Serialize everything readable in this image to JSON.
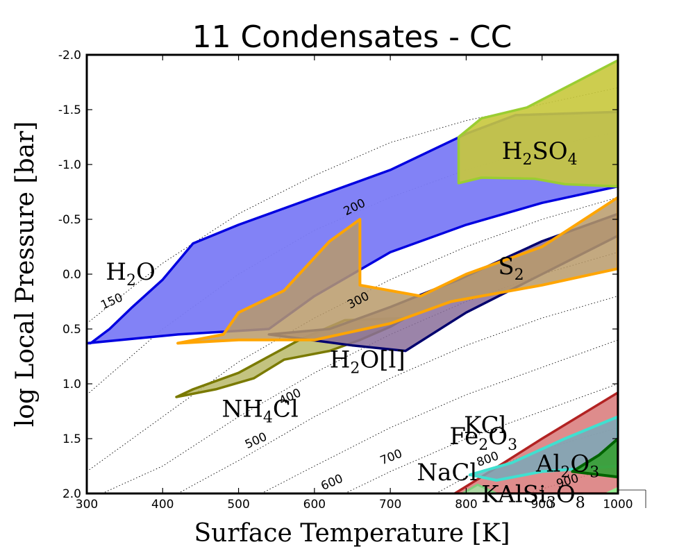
{
  "colors": {
    "h2o": "#0000e0",
    "h2o_fill": "#7b7bf5",
    "orange": "#ffa500",
    "olive": "#7a7a00",
    "olive_fill": "#b8b86a",
    "yellowgreen": "#9acd32",
    "yellow_fill": "#c8c83c",
    "navy": "#00006e",
    "darkred": "#b22222",
    "red_fill": "#d87878",
    "turquoise": "#40e0d0",
    "darkgreen": "#006400",
    "green_fill": "#3aa03a",
    "lightgreen": "#90ee90"
  },
  "chart_data": {
    "type": "area",
    "title": "11 Condensates - CC",
    "xlabel": "Surface Temperature [K]",
    "ylabel": "log Local Pressure [bar]",
    "xlim": [
      300,
      1000
    ],
    "ylim": [
      2.0,
      -2.0
    ],
    "xticks": [
      "300",
      "400",
      "500",
      "600",
      "700",
      "800",
      "900",
      "1000"
    ],
    "yticks": [
      "2.0",
      "1.5",
      "1.0",
      "0.5",
      "0.0",
      "-0.5",
      "-1.0",
      "-1.5",
      "-2.0"
    ],
    "xtick_values": [
      300,
      400,
      500,
      600,
      700,
      800,
      900,
      1000
    ],
    "ytick_values": [
      2.0,
      1.5,
      1.0,
      0.5,
      0.0,
      -0.5,
      -1.0,
      -1.5,
      -2.0
    ],
    "isotherms": [
      {
        "label": "150",
        "points": [
          [
            300,
            0.45
          ],
          [
            400,
            -0.1
          ],
          [
            500,
            -0.55
          ],
          [
            600,
            -0.9
          ],
          [
            700,
            -1.2
          ],
          [
            800,
            -1.4
          ],
          [
            900,
            -1.55
          ],
          [
            1000,
            -1.7
          ]
        ],
        "label_at": [
          335,
          0.28
        ]
      },
      {
        "label": "200",
        "points": [
          [
            300,
            1.1
          ],
          [
            400,
            0.5
          ],
          [
            500,
            0.0
          ],
          [
            600,
            -0.4
          ],
          [
            700,
            -0.7
          ],
          [
            800,
            -0.95
          ],
          [
            900,
            -1.15
          ],
          [
            1000,
            -1.3
          ]
        ],
        "label_at": [
          655,
          -0.58
        ]
      },
      {
        "label": "300",
        "points": [
          [
            300,
            1.8
          ],
          [
            400,
            1.3
          ],
          [
            500,
            0.8
          ],
          [
            600,
            0.4
          ],
          [
            700,
            0.05
          ],
          [
            800,
            -0.25
          ],
          [
            900,
            -0.5
          ],
          [
            1000,
            -0.7
          ]
        ],
        "label_at": [
          660,
          0.27
        ]
      },
      {
        "label": "400",
        "points": [
          [
            320,
            2.0
          ],
          [
            400,
            1.75
          ],
          [
            500,
            1.3
          ],
          [
            600,
            0.9
          ],
          [
            700,
            0.55
          ],
          [
            800,
            0.25
          ],
          [
            900,
            0.0
          ],
          [
            1000,
            -0.2
          ]
        ],
        "label_at": [
          570,
          1.15
        ]
      },
      {
        "label": "500",
        "points": [
          [
            420,
            2.0
          ],
          [
            500,
            1.7
          ],
          [
            600,
            1.3
          ],
          [
            700,
            0.95
          ],
          [
            800,
            0.65
          ],
          [
            900,
            0.4
          ],
          [
            1000,
            0.2
          ]
        ],
        "label_at": [
          525,
          1.55
        ]
      },
      {
        "label": "600",
        "points": [
          [
            530,
            2.0
          ],
          [
            600,
            1.75
          ],
          [
            700,
            1.4
          ],
          [
            800,
            1.1
          ],
          [
            900,
            0.85
          ],
          [
            1000,
            0.6
          ]
        ],
        "label_at": [
          625,
          1.93
        ]
      },
      {
        "label": "700",
        "points": [
          [
            640,
            2.0
          ],
          [
            700,
            1.8
          ],
          [
            800,
            1.5
          ],
          [
            900,
            1.25
          ],
          [
            1000,
            1.0
          ]
        ],
        "label_at": [
          703,
          1.7
        ]
      },
      {
        "label": "800",
        "points": [
          [
            760,
            2.0
          ],
          [
            800,
            1.85
          ],
          [
            900,
            1.6
          ],
          [
            1000,
            1.4
          ]
        ],
        "label_at": [
          830,
          1.72
        ]
      },
      {
        "label": "900",
        "points": [
          [
            880,
            2.0
          ],
          [
            1000,
            1.75
          ]
        ],
        "label_at": [
          935,
          1.92
        ]
      }
    ],
    "regions": [
      {
        "name": "H2O",
        "label": "H2O",
        "label_parts": [
          "H",
          "2",
          "O"
        ],
        "stroke": "#0000e0",
        "fill": "#7b7bf5",
        "opacity": 0.95,
        "width": 3.5,
        "points": [
          [
            305,
            0.63
          ],
          [
            330,
            0.5
          ],
          [
            360,
            0.3
          ],
          [
            400,
            0.05
          ],
          [
            440,
            -0.28
          ],
          [
            500,
            -0.45
          ],
          [
            600,
            -0.7
          ],
          [
            700,
            -0.95
          ],
          [
            800,
            -1.28
          ],
          [
            865,
            -1.45
          ],
          [
            1000,
            -1.48
          ],
          [
            1000,
            -0.8
          ],
          [
            900,
            -0.65
          ],
          [
            800,
            -0.45
          ],
          [
            700,
            -0.2
          ],
          [
            600,
            0.2
          ],
          [
            540,
            0.5
          ],
          [
            420,
            0.55
          ],
          [
            300,
            0.63
          ]
        ],
        "label_at": [
          325,
          0.05
        ]
      },
      {
        "name": "NH4Cl",
        "label": "NH4Cl",
        "label_parts": [
          "NH",
          "4",
          "Cl"
        ],
        "stroke": "#7a7a00",
        "fill": "#b8b86a",
        "opacity": 0.85,
        "width": 3.5,
        "points": [
          [
            418,
            1.12
          ],
          [
            470,
            1.05
          ],
          [
            520,
            0.95
          ],
          [
            560,
            0.78
          ],
          [
            620,
            0.7
          ],
          [
            660,
            0.6
          ],
          [
            700,
            0.48
          ],
          [
            720,
            0.4
          ],
          [
            640,
            0.42
          ],
          [
            580,
            0.6
          ],
          [
            500,
            0.9
          ],
          [
            440,
            1.05
          ],
          [
            418,
            1.12
          ]
        ],
        "label_at": [
          478,
          1.3
        ]
      },
      {
        "name": "H2O[l]",
        "label": "H2O[l]",
        "label_parts": [
          "H",
          "2",
          "O[l]"
        ],
        "stroke": "#00006e",
        "fill": "#8a6e9a",
        "opacity": 0.85,
        "width": 3.5,
        "points": [
          [
            540,
            0.55
          ],
          [
            620,
            0.5
          ],
          [
            700,
            0.3
          ],
          [
            790,
            0.05
          ],
          [
            900,
            -0.3
          ],
          [
            1000,
            -0.55
          ],
          [
            1000,
            -0.35
          ],
          [
            900,
            0.0
          ],
          [
            800,
            0.35
          ],
          [
            720,
            0.7
          ],
          [
            650,
            0.65
          ],
          [
            540,
            0.55
          ]
        ],
        "label_at": [
          620,
          0.85
        ]
      },
      {
        "name": "S2",
        "label": "S2",
        "label_parts": [
          "S",
          "2",
          ""
        ],
        "stroke": "#ffa500",
        "fill": "#b89a6a",
        "opacity": 0.85,
        "width": 4.0,
        "points": [
          [
            420,
            0.63
          ],
          [
            480,
            0.55
          ],
          [
            500,
            0.35
          ],
          [
            560,
            0.15
          ],
          [
            620,
            -0.3
          ],
          [
            660,
            -0.5
          ],
          [
            660,
            0.1
          ],
          [
            740,
            0.2
          ],
          [
            800,
            0.0
          ],
          [
            900,
            -0.25
          ],
          [
            1000,
            -0.7
          ],
          [
            1000,
            -0.05
          ],
          [
            900,
            0.1
          ],
          [
            780,
            0.25
          ],
          [
            700,
            0.45
          ],
          [
            600,
            0.6
          ],
          [
            500,
            0.6
          ],
          [
            420,
            0.63
          ]
        ],
        "label_at": [
          842,
          0.0
        ]
      },
      {
        "name": "H2SO4",
        "label": "H2SO4",
        "label_parts": [
          "H",
          "2",
          "SO",
          "4",
          ""
        ],
        "stroke": "#9acd32",
        "fill": "#c8c83c",
        "opacity": 0.9,
        "width": 3.5,
        "points": [
          [
            790,
            -1.25
          ],
          [
            820,
            -1.42
          ],
          [
            880,
            -1.52
          ],
          [
            1000,
            -1.95
          ],
          [
            1000,
            -0.8
          ],
          [
            930,
            -0.82
          ],
          [
            890,
            -0.87
          ],
          [
            820,
            -0.88
          ],
          [
            790,
            -0.83
          ],
          [
            790,
            -1.25
          ]
        ],
        "label_at": [
          847,
          -1.05
        ]
      },
      {
        "name": "Fe2O3",
        "label": "Fe2O3",
        "label_parts": [
          "Fe",
          "2",
          "O",
          "3",
          ""
        ],
        "stroke": "#b22222",
        "fill": "#d87878",
        "opacity": 0.85,
        "width": 3.5,
        "points": [
          [
            785,
            2.0
          ],
          [
            820,
            1.85
          ],
          [
            900,
            1.5
          ],
          [
            1000,
            1.08
          ],
          [
            1000,
            2.0
          ],
          [
            785,
            2.0
          ]
        ],
        "label_at": [
          778,
          1.55
        ]
      },
      {
        "name": "KCl",
        "label": "KCl",
        "label_parts": [
          "KCl"
        ],
        "stroke": "#40e0d0",
        "fill": "#7aa8b8",
        "opacity": 0.85,
        "width": 4.0,
        "points": [
          [
            805,
            1.83
          ],
          [
            860,
            1.72
          ],
          [
            930,
            1.5
          ],
          [
            1000,
            1.3
          ],
          [
            1000,
            1.75
          ],
          [
            900,
            1.8
          ],
          [
            840,
            1.88
          ],
          [
            805,
            1.83
          ]
        ],
        "label_at": [
          797,
          1.45
        ]
      },
      {
        "name": "Al2O3",
        "label": "Al2O3",
        "label_parts": [
          "Al",
          "2",
          "O",
          "3",
          ""
        ],
        "stroke": "#006400",
        "fill": "#3aa03a",
        "opacity": 0.95,
        "width": 4.0,
        "points": [
          [
            940,
            1.8
          ],
          [
            975,
            1.65
          ],
          [
            1000,
            1.5
          ],
          [
            1000,
            1.85
          ],
          [
            940,
            1.8
          ]
        ],
        "label_at": [
          892,
          1.8
        ]
      },
      {
        "name": "KAlSi3O8",
        "label": "KAlSi3O8",
        "label_parts": [
          "KAlSi",
          "3",
          "O",
          "8",
          ""
        ],
        "stroke": "#90ee90",
        "fill": "#90ee90",
        "opacity": 0.9,
        "width": 3.0,
        "points": [
          [
            985,
            2.0
          ],
          [
            1000,
            1.95
          ],
          [
            1000,
            2.0
          ],
          [
            985,
            2.0
          ]
        ],
        "label_at": [
          820,
          2.08
        ]
      },
      {
        "name": "NaCl",
        "label": "NaCl",
        "label_parts": [
          "NaCl"
        ],
        "stroke": "#7ed17e",
        "fill": "#a6e0a6",
        "opacity": 0.9,
        "width": 3.0,
        "points": [
          [
            795,
            2.0
          ],
          [
            815,
            1.92
          ],
          [
            840,
            2.0
          ],
          [
            795,
            2.0
          ]
        ],
        "label_at": [
          735,
          1.88
        ]
      }
    ]
  }
}
